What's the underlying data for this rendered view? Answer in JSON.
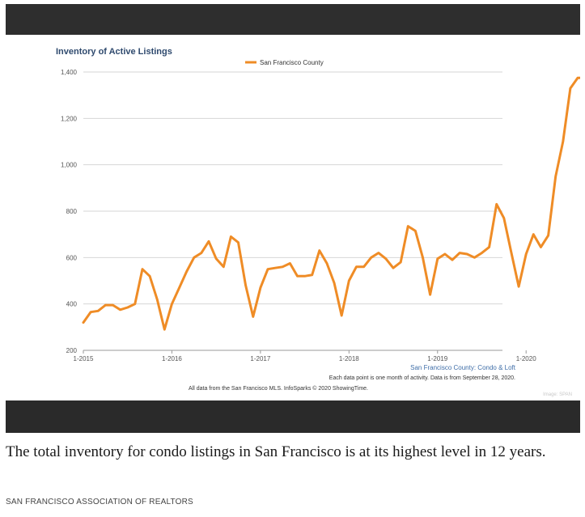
{
  "figure": {
    "caption": "The total inventory for condo listings in San Francisco is at its highest level in 12 years.",
    "source": "SAN FRANCISCO ASSOCIATION OF REALTORS",
    "image_credit": "Image: SPAN"
  },
  "colors": {
    "line": "#ef8c26",
    "title": "#2f4a6e",
    "grid": "#d6d6d6",
    "series_caption": "#3f6ea8",
    "frame": "#2e2e2e"
  },
  "chart_data": {
    "type": "line",
    "title": "Inventory of Active Listings",
    "legend": "San Francisco County",
    "legend_position": "top-center",
    "series_caption": "San Francisco County: Condo & Loft",
    "note": "Each data point is one month of activity. Data is from September 28, 2020.",
    "footnote": "All data from the San Francisco MLS. InfoSparks © 2020 ShowingTime.",
    "grid": true,
    "ylim": [
      200,
      1400
    ],
    "yticks": [
      200,
      400,
      600,
      800,
      1000,
      1200,
      1400
    ],
    "ytick_labels": [
      "200",
      "400",
      "600",
      "800",
      "1,000",
      "1,200",
      "1,400"
    ],
    "xtick_labels": [
      "1-2015",
      "1-2016",
      "1-2017",
      "1-2018",
      "1-2019",
      "1-2020"
    ],
    "series": [
      {
        "name": "San Francisco County",
        "x": [
          "1-2015",
          "2-2015",
          "3-2015",
          "4-2015",
          "5-2015",
          "6-2015",
          "7-2015",
          "8-2015",
          "9-2015",
          "10-2015",
          "11-2015",
          "12-2015",
          "1-2016",
          "2-2016",
          "3-2016",
          "4-2016",
          "5-2016",
          "6-2016",
          "7-2016",
          "8-2016",
          "9-2016",
          "10-2016",
          "11-2016",
          "12-2016",
          "1-2017",
          "2-2017",
          "3-2017",
          "4-2017",
          "5-2017",
          "6-2017",
          "7-2017",
          "8-2017",
          "9-2017",
          "10-2017",
          "11-2017",
          "12-2017",
          "1-2018",
          "2-2018",
          "3-2018",
          "4-2018",
          "5-2018",
          "6-2018",
          "7-2018",
          "8-2018",
          "9-2018",
          "10-2018",
          "11-2018",
          "12-2018",
          "1-2019",
          "2-2019",
          "3-2019",
          "4-2019",
          "5-2019",
          "6-2019",
          "7-2019",
          "8-2019",
          "9-2019",
          "10-2019",
          "11-2019",
          "12-2019",
          "1-2020",
          "2-2020",
          "3-2020",
          "4-2020",
          "5-2020",
          "6-2020",
          "7-2020",
          "8-2020",
          "9-2020"
        ],
        "values": [
          320,
          365,
          370,
          395,
          395,
          375,
          385,
          400,
          550,
          520,
          420,
          290,
          400,
          470,
          540,
          600,
          620,
          670,
          595,
          560,
          690,
          665,
          480,
          345,
          470,
          550,
          555,
          560,
          575,
          520,
          520,
          525,
          630,
          575,
          490,
          350,
          500,
          560,
          560,
          600,
          620,
          595,
          555,
          580,
          735,
          715,
          600,
          440,
          595,
          615,
          590,
          620,
          615,
          600,
          620,
          645,
          830,
          770,
          620,
          475,
          615,
          700,
          645,
          695,
          950,
          1100,
          1330,
          1375,
          1375
        ]
      }
    ]
  }
}
